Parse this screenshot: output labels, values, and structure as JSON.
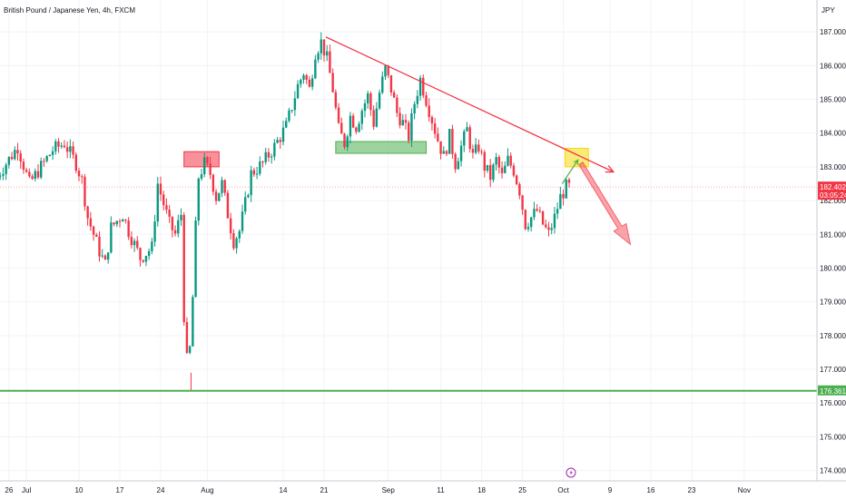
{
  "header": {
    "title": "British Pound / Japanese Yen, 4h, FXCM",
    "currency": "JPY"
  },
  "chart_data": {
    "type": "candlestick",
    "title": "British Pound / Japanese Yen, 4h, FXCM",
    "ylabel": "JPY",
    "ylim": [
      173.8,
      187.3
    ],
    "grid": true,
    "y_ticks": [
      "174.000",
      "175.000",
      "176.000",
      "177.000",
      "178.000",
      "179.000",
      "180.000",
      "181.000",
      "182.000",
      "183.000",
      "184.000",
      "185.000",
      "186.000",
      "187.000"
    ],
    "x_ticks": [
      "26",
      "Jul",
      "10",
      "17",
      "24",
      "Aug",
      "14",
      "21",
      "Sep",
      "11",
      "18",
      "25",
      "Oct",
      "9",
      "16",
      "23",
      "Nov"
    ],
    "x_tick_values": [
      -3,
      0,
      9,
      16,
      23,
      31,
      44,
      51,
      62,
      71,
      78,
      85,
      92,
      100,
      107,
      114,
      123
    ],
    "xlim": [
      -5,
      128
    ],
    "price_axis_labels": [
      {
        "value": 182.402,
        "text": "182.402",
        "subtext": "03:05:24",
        "color": "#f23645"
      },
      {
        "value": 176.361,
        "text": "176.361",
        "color": "#4caf50"
      }
    ],
    "current_price": 182.402,
    "support_line": {
      "value": 176.361,
      "color": "#4caf50"
    },
    "trendline": {
      "from": {
        "x": 51.3,
        "y": 186.85
      },
      "to": {
        "x": 100.6,
        "y": 182.85
      },
      "color": "#f23645"
    },
    "zones": [
      {
        "name": "resistance",
        "x0": 27,
        "x1": 33,
        "y0": 183.0,
        "y1": 183.45,
        "color": "#f23645"
      },
      {
        "name": "support",
        "x0": 53,
        "x1": 68.5,
        "y0": 183.4,
        "y1": 183.75,
        "color": "#4caf50"
      },
      {
        "name": "retest",
        "x0": 92.3,
        "x1": 96.3,
        "y0": 183.0,
        "y1": 183.55,
        "color": "#f5d90a"
      }
    ],
    "projection_up": {
      "from": {
        "x": 91.8,
        "y": 182.5
      },
      "to": {
        "x": 94.5,
        "y": 183.2
      },
      "color": "#4caf50"
    },
    "projection_down": {
      "from": {
        "x": 95.0,
        "y": 183.1
      },
      "to": {
        "x": 103.5,
        "y": 180.7
      },
      "color": "#f23645"
    },
    "series_down_color": "#f23645",
    "series_up_color": "#089981",
    "anchors": [
      {
        "x": -5,
        "y": 182.6
      },
      {
        "x": -3,
        "y": 183.1
      },
      {
        "x": -1,
        "y": 183.6
      },
      {
        "x": 1,
        "y": 182.5
      },
      {
        "x": 3,
        "y": 183.0
      },
      {
        "x": 5,
        "y": 183.5
      },
      {
        "x": 7,
        "y": 183.7
      },
      {
        "x": 9,
        "y": 183.1
      },
      {
        "x": 10,
        "y": 182.6
      },
      {
        "x": 11,
        "y": 181.5
      },
      {
        "x": 13,
        "y": 180.5
      },
      {
        "x": 14,
        "y": 180.1
      },
      {
        "x": 15,
        "y": 181.2
      },
      {
        "x": 17,
        "y": 181.6
      },
      {
        "x": 18,
        "y": 181.1
      },
      {
        "x": 20,
        "y": 180.3
      },
      {
        "x": 22,
        "y": 180.6
      },
      {
        "x": 23,
        "y": 182.5
      },
      {
        "x": 25,
        "y": 181.3
      },
      {
        "x": 26,
        "y": 181.0
      },
      {
        "x": 27,
        "y": 181.6
      },
      {
        "x": 27.6,
        "y": 178.0
      },
      {
        "x": 28.2,
        "y": 176.9
      },
      {
        "x": 28.8,
        "y": 178.3
      },
      {
        "x": 29.5,
        "y": 181.2
      },
      {
        "x": 30,
        "y": 182.7
      },
      {
        "x": 31,
        "y": 183.1
      },
      {
        "x": 32,
        "y": 182.8
      },
      {
        "x": 33,
        "y": 182.1
      },
      {
        "x": 34,
        "y": 182.5
      },
      {
        "x": 35,
        "y": 181.6
      },
      {
        "x": 36,
        "y": 180.8
      },
      {
        "x": 37,
        "y": 181.1
      },
      {
        "x": 38,
        "y": 181.9
      },
      {
        "x": 39,
        "y": 182.8
      },
      {
        "x": 41,
        "y": 183.1
      },
      {
        "x": 43,
        "y": 183.6
      },
      {
        "x": 45,
        "y": 184.2
      },
      {
        "x": 47,
        "y": 185.4
      },
      {
        "x": 48,
        "y": 185.8
      },
      {
        "x": 49,
        "y": 185.3
      },
      {
        "x": 50,
        "y": 186.4
      },
      {
        "x": 51,
        "y": 186.7
      },
      {
        "x": 52,
        "y": 186.2
      },
      {
        "x": 53,
        "y": 185.3
      },
      {
        "x": 54,
        "y": 184.1
      },
      {
        "x": 55,
        "y": 183.7
      },
      {
        "x": 56,
        "y": 184.5
      },
      {
        "x": 57,
        "y": 184.2
      },
      {
        "x": 58,
        "y": 184.7
      },
      {
        "x": 59,
        "y": 185.1
      },
      {
        "x": 60,
        "y": 184.3
      },
      {
        "x": 61,
        "y": 185.2
      },
      {
        "x": 62,
        "y": 185.9
      },
      {
        "x": 63,
        "y": 185.3
      },
      {
        "x": 64,
        "y": 184.6
      },
      {
        "x": 65,
        "y": 184.3
      },
      {
        "x": 66,
        "y": 183.9
      },
      {
        "x": 67,
        "y": 184.9
      },
      {
        "x": 68,
        "y": 185.6
      },
      {
        "x": 69,
        "y": 185.0
      },
      {
        "x": 70,
        "y": 184.4
      },
      {
        "x": 71,
        "y": 183.8
      },
      {
        "x": 72,
        "y": 183.3
      },
      {
        "x": 73,
        "y": 183.9
      },
      {
        "x": 74,
        "y": 183.1
      },
      {
        "x": 75,
        "y": 183.6
      },
      {
        "x": 76,
        "y": 184.1
      },
      {
        "x": 77,
        "y": 183.3
      },
      {
        "x": 78,
        "y": 183.6
      },
      {
        "x": 79,
        "y": 183.0
      },
      {
        "x": 80,
        "y": 182.7
      },
      {
        "x": 81,
        "y": 183.2
      },
      {
        "x": 82,
        "y": 182.7
      },
      {
        "x": 83,
        "y": 183.2
      },
      {
        "x": 84,
        "y": 182.9
      },
      {
        "x": 85,
        "y": 182.3
      },
      {
        "x": 86,
        "y": 181.3
      },
      {
        "x": 87,
        "y": 181.5
      },
      {
        "x": 88,
        "y": 181.7
      },
      {
        "x": 89,
        "y": 181.3
      },
      {
        "x": 90,
        "y": 181.0
      },
      {
        "x": 91,
        "y": 181.5
      },
      {
        "x": 92,
        "y": 182.1
      },
      {
        "x": 93,
        "y": 182.4
      }
    ]
  }
}
